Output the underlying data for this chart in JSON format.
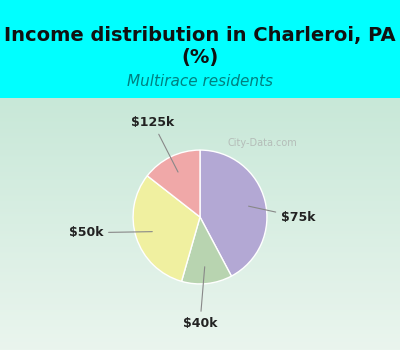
{
  "title": "Income distribution in Charleroi, PA\n(%)",
  "subtitle": "Multirace residents",
  "title_color": "#111111",
  "subtitle_color": "#008080",
  "title_bg_color": "#00FFFF",
  "chart_bg_gradient_top": "#d0ede0",
  "chart_bg_gradient_bottom": "#e8f5ee",
  "slices": [
    {
      "label": "$75k",
      "value": 38,
      "color": "#b3a8d4"
    },
    {
      "label": "$50k",
      "value": 28,
      "color": "#f0f0a0"
    },
    {
      "label": "$125k",
      "value": 13,
      "color": "#f0a8a8"
    },
    {
      "label": "$40k",
      "value": 11,
      "color": "#b8d4b0"
    }
  ],
  "watermark": "City-Data.com",
  "label_fontsize": 9,
  "title_fontsize": 14,
  "subtitle_fontsize": 11
}
